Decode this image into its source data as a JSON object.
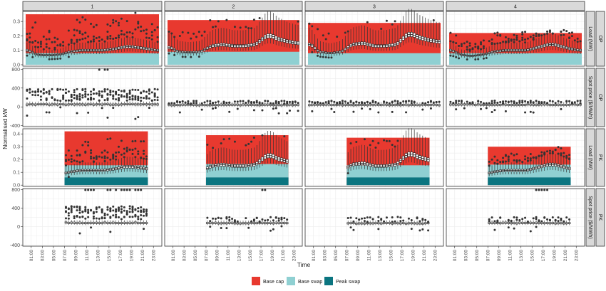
{
  "chart_data": {
    "type": "boxplot-faceted",
    "xlabel": "Time",
    "ylabel": "Normalised kW",
    "x_ticks": [
      "01:00",
      "03:00",
      "05:00",
      "07:00",
      "09:00",
      "11:00",
      "13:00",
      "15:00",
      "17:00",
      "19:00",
      "21:00",
      "23:00"
    ],
    "column_facets": [
      "1",
      "2",
      "3",
      "4"
    ],
    "row_facets": [
      {
        "tariff": "OP",
        "variable": "Load (MW)",
        "ylim": [
          -0.01,
          0.37
        ],
        "yticks": [
          0.0,
          0.1,
          0.2,
          0.3
        ],
        "ytick_labels": [
          "0.0",
          "0.1",
          "0.2",
          "0.3"
        ]
      },
      {
        "tariff": "OP",
        "variable": "Spot price ($/MWh)",
        "ylim": [
          -420,
          820
        ],
        "yticks": [
          -400,
          0,
          400,
          800
        ],
        "ytick_labels": [
          "-400",
          "0",
          "400",
          "800"
        ]
      },
      {
        "tariff": "PK",
        "variable": "Load (MW)",
        "ylim": [
          -0.01,
          0.44
        ],
        "yticks": [
          0.0,
          0.1,
          0.2,
          0.3,
          0.4
        ],
        "ytick_labels": [
          "0.0",
          "0.1",
          "0.2",
          "0.3",
          "0.4"
        ]
      },
      {
        "tariff": "PK",
        "variable": "Spot price ($/MWh)",
        "ylim": [
          -420,
          820
        ],
        "yticks": [
          -400,
          0,
          400,
          800
        ],
        "ytick_labels": [
          "-400",
          "0",
          "400",
          "800"
        ]
      }
    ],
    "legend": {
      "position": "bottom",
      "entries": [
        {
          "label": "Base cap",
          "color": "#E8392F"
        },
        {
          "label": "Base swap",
          "color": "#8FD0D2"
        },
        {
          "label": "Peak swap",
          "color": "#0B7580"
        }
      ]
    },
    "hedge_levels": [
      {
        "facet": "1",
        "OP": {
          "base_cap": 0.35,
          "base_swap": 0.08
        },
        "PK": {
          "start_hour": 7,
          "end_hour": 22,
          "base_cap": 0.42,
          "base_swap": 0.155,
          "peak_swap": 0.06
        }
      },
      {
        "facet": "2",
        "OP": {
          "base_cap": 0.31,
          "base_swap": 0.09
        },
        "PK": {
          "start_hour": 7,
          "end_hour": 22,
          "base_cap": 0.39,
          "base_swap": 0.165,
          "peak_swap": 0.06
        }
      },
      {
        "facet": "3",
        "OP": {
          "base_cap": 0.29,
          "base_swap": 0.08
        },
        "PK": {
          "start_hour": 7,
          "end_hour": 22,
          "base_cap": 0.37,
          "base_swap": 0.155,
          "peak_swap": 0.06
        }
      },
      {
        "facet": "4",
        "OP": {
          "base_cap": 0.22,
          "base_swap": 0.08
        },
        "PK": {
          "start_hour": 7,
          "end_hour": 22,
          "base_cap": 0.3,
          "base_swap": 0.16,
          "peak_swap": 0.06
        }
      }
    ],
    "median_load_profile_approx": {
      "hours": [
        0.5,
        2,
        4,
        6,
        8,
        10,
        12,
        14,
        16,
        18,
        19,
        20,
        22,
        23.5
      ],
      "facet_1": [
        0.1,
        0.07,
        0.065,
        0.07,
        0.09,
        0.1,
        0.1,
        0.1,
        0.11,
        0.125,
        0.125,
        0.12,
        0.11,
        0.1
      ],
      "facet_2": [
        0.12,
        0.09,
        0.085,
        0.09,
        0.13,
        0.14,
        0.13,
        0.13,
        0.14,
        0.2,
        0.2,
        0.18,
        0.16,
        0.15
      ],
      "facet_3": [
        0.14,
        0.09,
        0.08,
        0.09,
        0.14,
        0.15,
        0.13,
        0.13,
        0.14,
        0.21,
        0.21,
        0.19,
        0.17,
        0.16
      ],
      "facet_4": [
        0.1,
        0.07,
        0.06,
        0.07,
        0.09,
        0.1,
        0.1,
        0.1,
        0.12,
        0.14,
        0.14,
        0.13,
        0.11,
        0.1
      ]
    },
    "median_price_approx": {
      "OP": [
        50,
        40,
        40,
        45
      ],
      "PK": [
        80,
        75,
        70,
        75
      ]
    }
  }
}
